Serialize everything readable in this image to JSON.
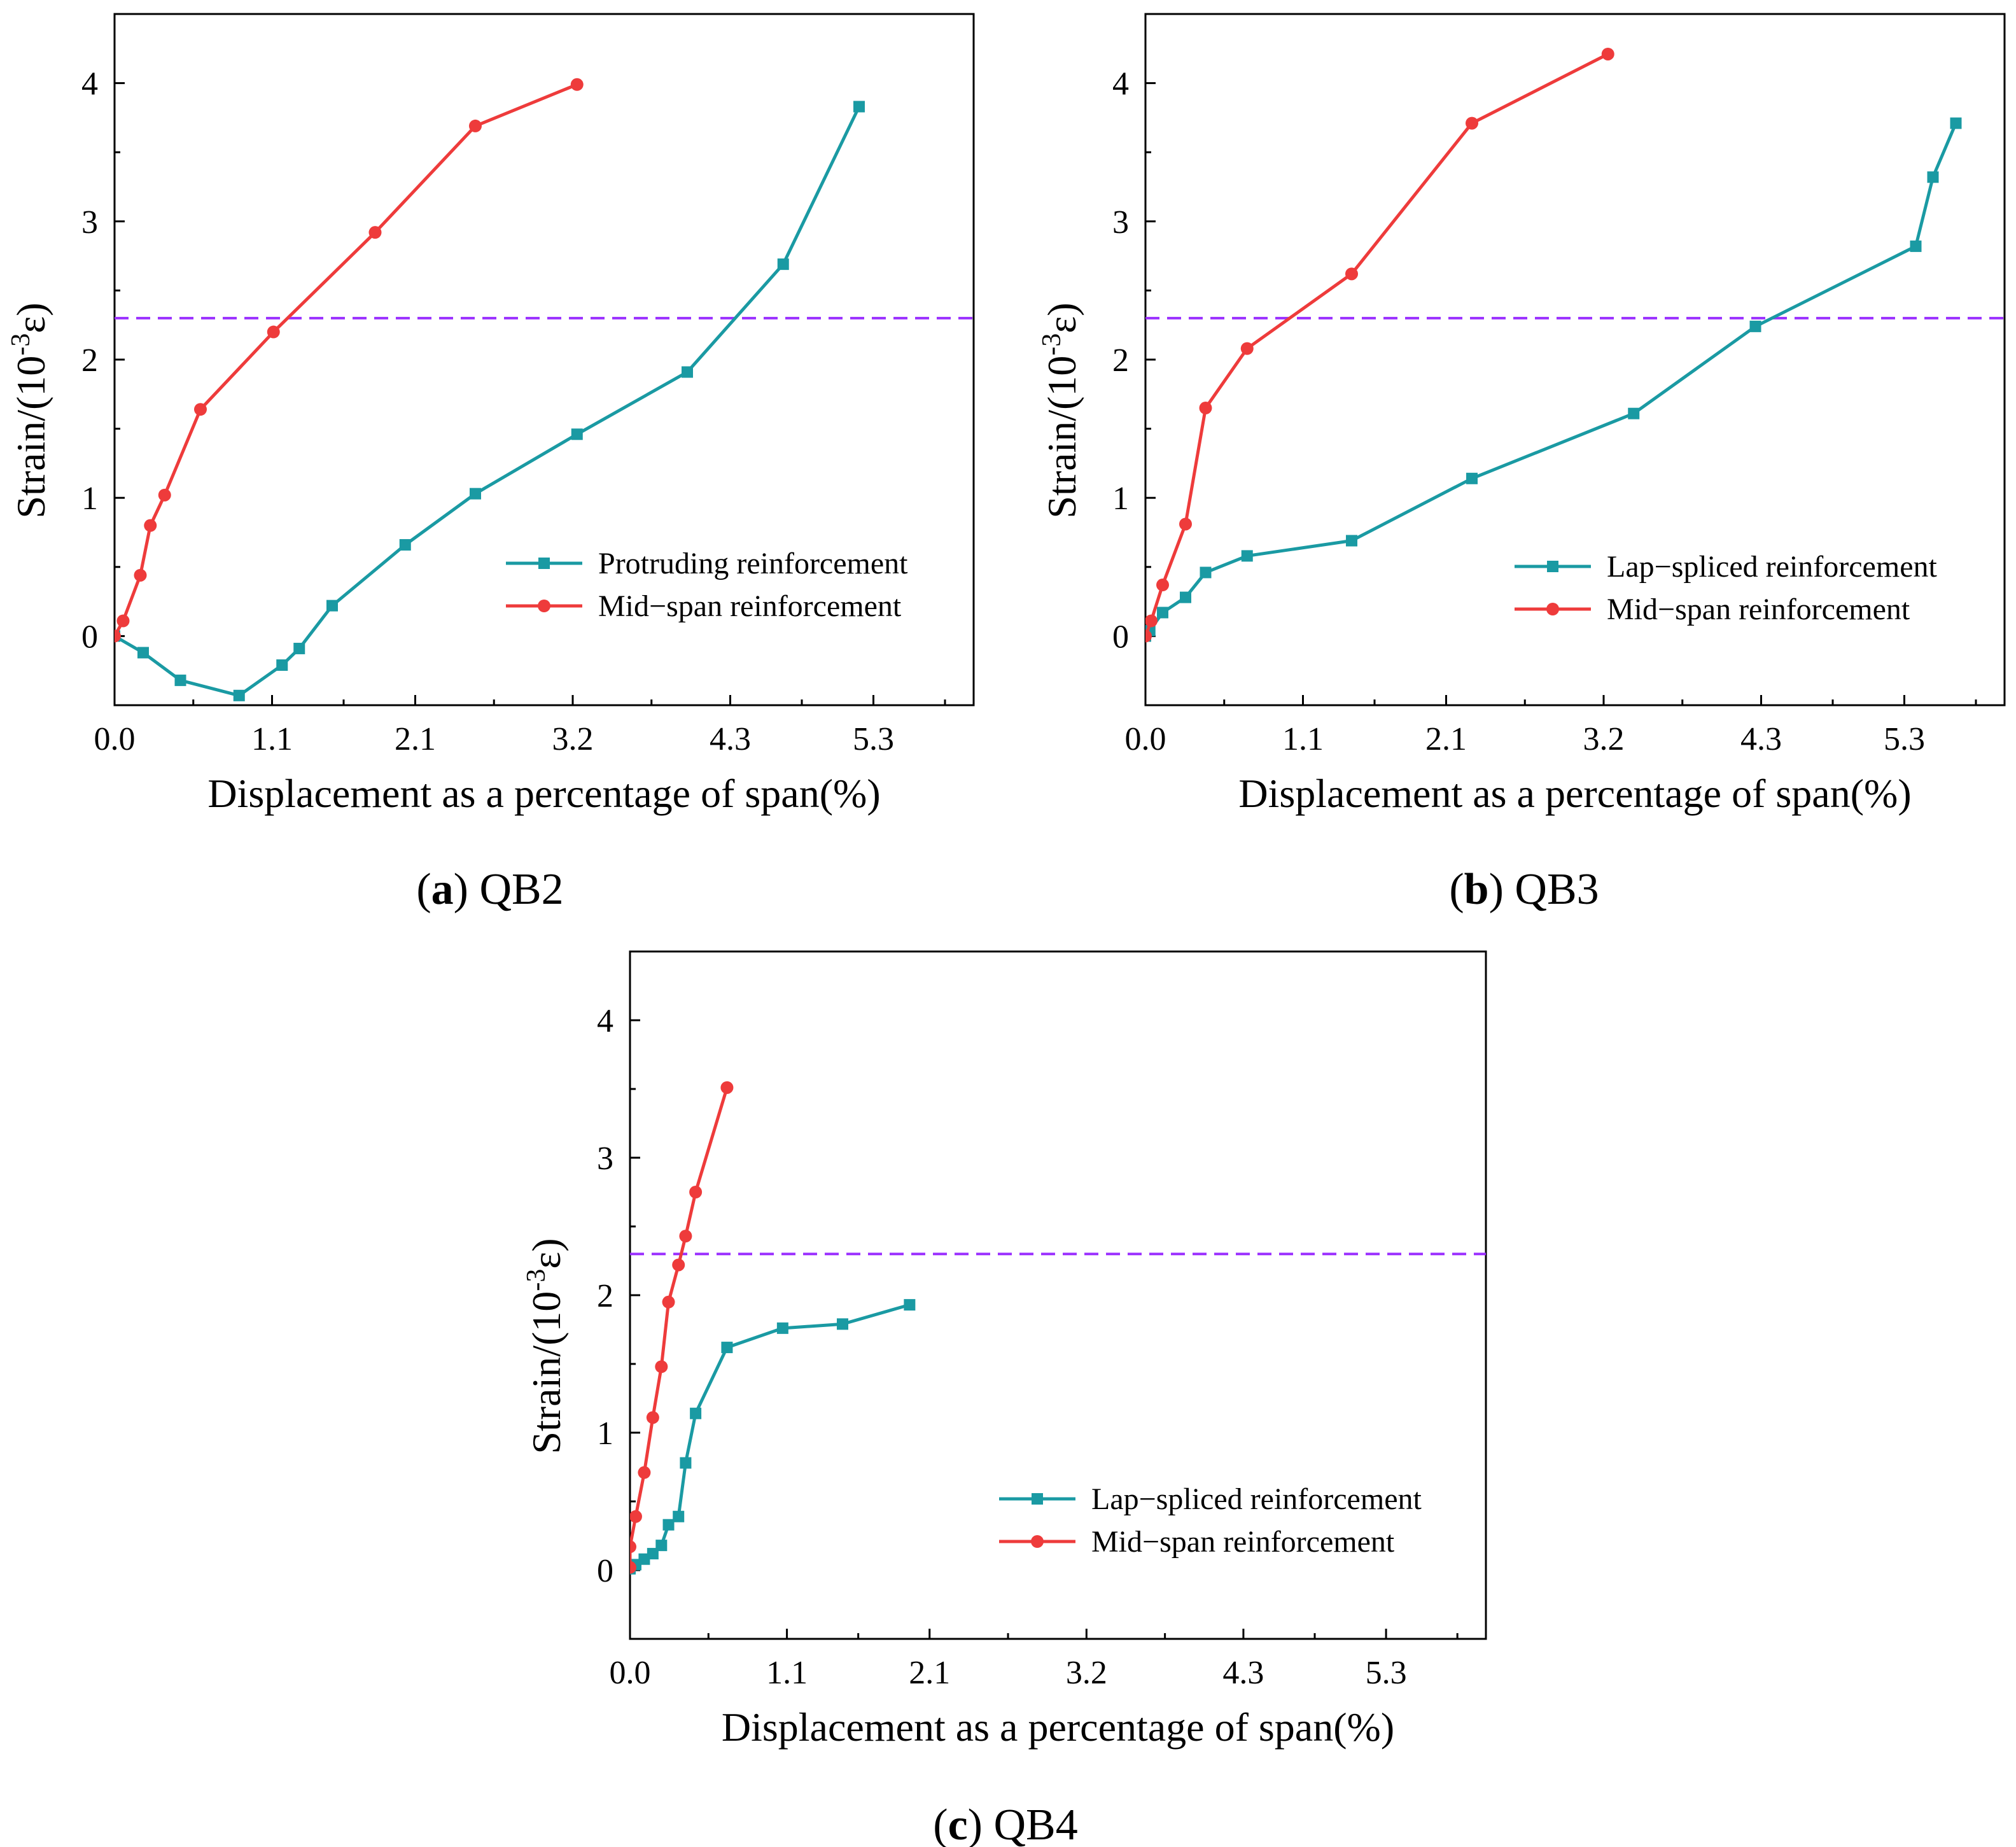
{
  "figure": {
    "captions": [
      {
        "letter": "a",
        "text": " QB2",
        "open": "(",
        "close": ")"
      },
      {
        "letter": "b",
        "text": " QB3",
        "open": "(",
        "close": ")"
      },
      {
        "letter": "c",
        "text": " QB4",
        "open": "(",
        "close": ")"
      }
    ]
  },
  "colors": {
    "teal": "#1a9aa3",
    "red": "#ee3b3b",
    "threshold": "#9b30ff",
    "axis": "#000000"
  },
  "chart_data": [
    {
      "id": "QB2",
      "type": "line",
      "xlabel": "Displacement as a percentage of span(%)",
      "ylabel_prefix": "Strain/(10",
      "ylabel_sup": "-3",
      "ylabel_suffix": "ε)",
      "xlim": [
        0,
        6.0
      ],
      "ylim": [
        -0.5,
        4.5
      ],
      "xticks": [
        0.0,
        1.1,
        2.1,
        3.2,
        4.3,
        5.3
      ],
      "xtick_labels": [
        "0.0",
        "1.1",
        "2.1",
        "3.2",
        "4.3",
        "5.3"
      ],
      "yticks": [
        0,
        1,
        2,
        3,
        4
      ],
      "ytick_labels": [
        "0",
        "1",
        "2",
        "3",
        "4"
      ],
      "threshold": 2.3,
      "legend_position": "right-middle",
      "series": [
        {
          "name": "Protruding reinforcement",
          "color": "#1a9aa3",
          "marker": "square",
          "x": [
            0.0,
            0.2,
            0.46,
            0.87,
            1.17,
            1.29,
            1.52,
            2.03,
            2.52,
            3.23,
            4.0,
            4.67,
            5.2
          ],
          "y": [
            0.0,
            -0.12,
            -0.32,
            -0.43,
            -0.21,
            -0.09,
            0.22,
            0.66,
            1.03,
            1.46,
            1.91,
            2.69,
            3.83
          ]
        },
        {
          "name": "Mid−span reinforcement",
          "color": "#ee3b3b",
          "marker": "circle",
          "x": [
            0.0,
            0.06,
            0.18,
            0.25,
            0.35,
            0.6,
            1.11,
            1.82,
            2.52,
            3.23
          ],
          "y": [
            0.0,
            0.11,
            0.44,
            0.8,
            1.02,
            1.64,
            2.2,
            2.92,
            3.69,
            3.99
          ]
        }
      ]
    },
    {
      "id": "QB3",
      "type": "line",
      "xlabel": "Displacement as a percentage of span(%)",
      "ylabel_prefix": "Strain/(10",
      "ylabel_sup": "-3",
      "ylabel_suffix": "ε)",
      "xlim": [
        0,
        6.0
      ],
      "ylim": [
        -0.5,
        4.5
      ],
      "xticks": [
        0.0,
        1.1,
        2.1,
        3.2,
        4.3,
        5.3
      ],
      "xtick_labels": [
        "0.0",
        "1.1",
        "2.1",
        "3.2",
        "4.3",
        "5.3"
      ],
      "yticks": [
        0,
        1,
        2,
        3,
        4
      ],
      "ytick_labels": [
        "0",
        "1",
        "2",
        "3",
        "4"
      ],
      "threshold": 2.3,
      "legend_position": "right-middle",
      "series": [
        {
          "name": "Lap−spliced reinforcement",
          "color": "#1a9aa3",
          "marker": "square",
          "x": [
            0.0,
            0.03,
            0.12,
            0.28,
            0.42,
            0.71,
            1.44,
            2.28,
            3.41,
            4.26,
            5.38,
            5.5,
            5.66
          ],
          "y": [
            0.0,
            0.04,
            0.17,
            0.28,
            0.46,
            0.58,
            0.69,
            1.14,
            1.61,
            2.24,
            2.82,
            3.32,
            3.71
          ]
        },
        {
          "name": "Mid−span reinforcement",
          "color": "#ee3b3b",
          "marker": "circle",
          "x": [
            0.0,
            0.04,
            0.12,
            0.28,
            0.42,
            0.71,
            1.44,
            2.28,
            3.23
          ],
          "y": [
            0.0,
            0.11,
            0.37,
            0.81,
            1.65,
            2.08,
            2.62,
            3.71,
            4.21
          ]
        }
      ]
    },
    {
      "id": "QB4",
      "type": "line",
      "xlabel": "Displacement as a percentage of span(%)",
      "ylabel_prefix": "Strain/(10",
      "ylabel_sup": "-3",
      "ylabel_suffix": "ε)",
      "xlim": [
        0,
        6.0
      ],
      "ylim": [
        -0.5,
        4.5
      ],
      "xticks": [
        0.0,
        1.1,
        2.1,
        3.2,
        4.3,
        5.3
      ],
      "xtick_labels": [
        "0.0",
        "1.1",
        "2.1",
        "3.2",
        "4.3",
        "5.3"
      ],
      "yticks": [
        0,
        1,
        2,
        3,
        4
      ],
      "ytick_labels": [
        "0",
        "1",
        "2",
        "3",
        "4"
      ],
      "threshold": 2.3,
      "legend_position": "right-lower",
      "series": [
        {
          "name": "Lap−spliced reinforcement",
          "color": "#1a9aa3",
          "marker": "square",
          "x": [
            0.0,
            0.04,
            0.1,
            0.16,
            0.22,
            0.27,
            0.34,
            0.39,
            0.46,
            0.68,
            1.07,
            1.49,
            1.96
          ],
          "y": [
            0.01,
            0.04,
            0.08,
            0.12,
            0.18,
            0.33,
            0.39,
            0.78,
            1.14,
            1.62,
            1.76,
            1.79,
            1.93
          ]
        },
        {
          "name": "Mid−span reinforcement",
          "color": "#ee3b3b",
          "marker": "circle",
          "x": [
            0.0,
            0.0,
            0.04,
            0.1,
            0.16,
            0.22,
            0.27,
            0.34,
            0.39,
            0.46,
            0.68
          ],
          "y": [
            0.02,
            0.17,
            0.39,
            0.71,
            1.11,
            1.48,
            1.95,
            2.22,
            2.43,
            2.75,
            3.51
          ]
        }
      ]
    }
  ]
}
